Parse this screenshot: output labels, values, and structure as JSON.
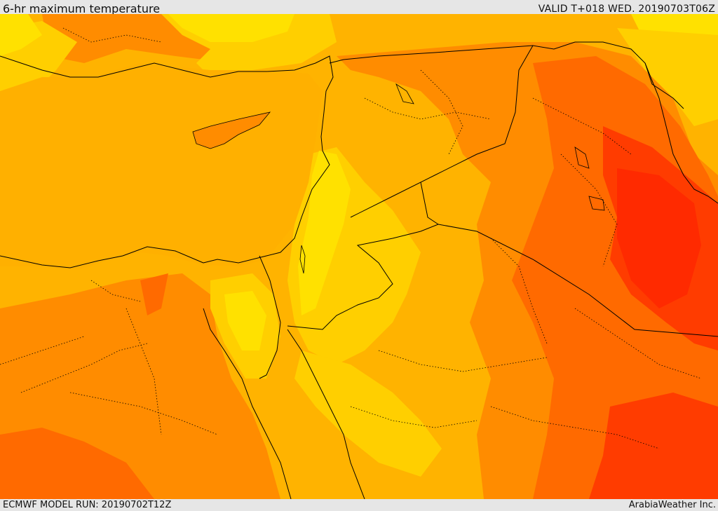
{
  "header": {
    "title": "6-hr maximum temperature",
    "valid": "VALID T+018 WED. 20190703T06Z"
  },
  "footer": {
    "model_run": "ECMWF MODEL RUN: 20190702T12Z",
    "credit": "ArabiaWeather Inc."
  },
  "colors": {
    "light_yellow": "#ffe100",
    "yellow": "#ffcf00",
    "gold": "#ffb300",
    "orange": "#ff8c00",
    "dark_orange": "#ff6a00",
    "red_orange": "#ff3c00",
    "red": "#ff2a00",
    "border": "#000000"
  }
}
